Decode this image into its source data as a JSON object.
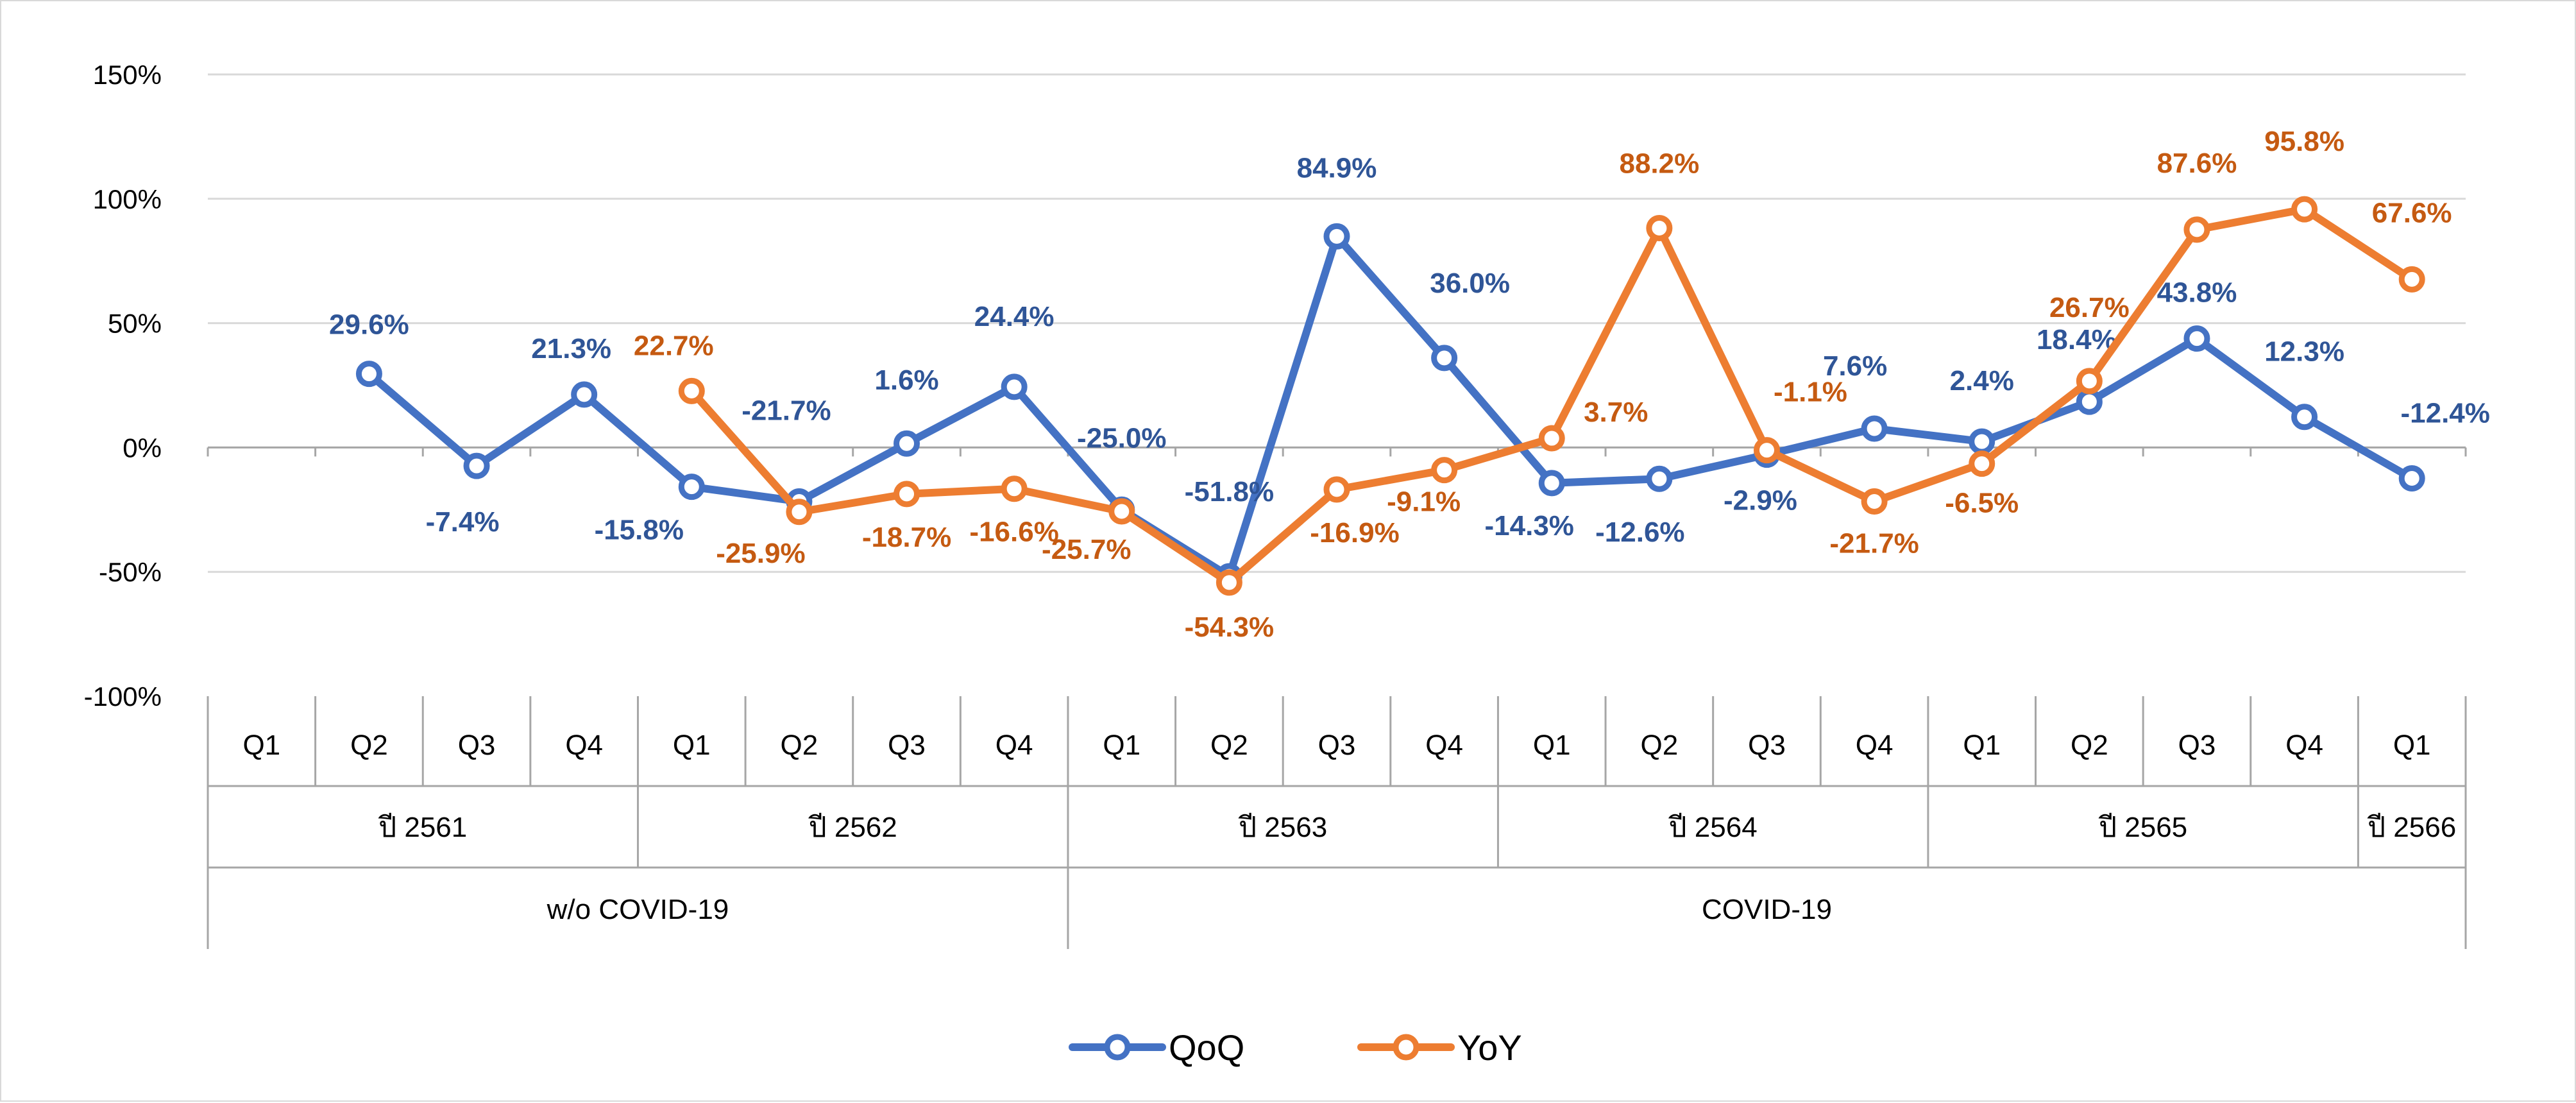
{
  "chart_data": {
    "type": "line",
    "categories": [
      "Q1",
      "Q2",
      "Q3",
      "Q4",
      "Q1",
      "Q2",
      "Q3",
      "Q4",
      "Q1",
      "Q2",
      "Q3",
      "Q4",
      "Q1",
      "Q2",
      "Q3",
      "Q4",
      "Q1",
      "Q2",
      "Q3",
      "Q4",
      "Q1"
    ],
    "years": [
      {
        "label": "ปี 2561",
        "span": 4
      },
      {
        "label": "ปี 2562",
        "span": 4
      },
      {
        "label": "ปี 2563",
        "span": 4
      },
      {
        "label": "ปี 2564",
        "span": 4
      },
      {
        "label": "ปี 2565",
        "span": 4
      },
      {
        "label": "ปี 2566",
        "span": 1
      }
    ],
    "periods": [
      {
        "label": "w/o COVID-19",
        "span": 8
      },
      {
        "label": "COVID-19",
        "span": 13
      }
    ],
    "ylim": [
      -100,
      150
    ],
    "yticks": [
      "150%",
      "100%",
      "50%",
      "0%",
      "-50%",
      "-100%"
    ],
    "grid": true,
    "legend_position": "bottom",
    "series": [
      {
        "name": "QoQ",
        "color": "#4472C4",
        "values": [
          null,
          29.6,
          -7.4,
          21.3,
          -15.8,
          -21.7,
          1.6,
          24.4,
          -25.0,
          -51.8,
          84.9,
          36.0,
          -14.3,
          -12.6,
          -2.9,
          7.6,
          2.4,
          18.4,
          43.8,
          12.3,
          -12.4
        ],
        "labels": [
          "",
          "29.6%",
          "-7.4%",
          "21.3%",
          "-15.8%",
          "-21.7%",
          "1.6%",
          "24.4%",
          "-25.0%",
          "-51.8%",
          "84.9%",
          "36.0%",
          "-14.3%",
          "-12.6%",
          "-2.9%",
          "7.6%",
          "2.4%",
          "18.4%",
          "43.8%",
          "12.3%",
          "-12.4%"
        ]
      },
      {
        "name": "YoY",
        "color": "#ED7D31",
        "values": [
          null,
          null,
          null,
          null,
          22.7,
          -25.9,
          -18.7,
          -16.6,
          -25.7,
          -54.3,
          -16.9,
          -9.1,
          3.7,
          88.2,
          -1.1,
          -21.7,
          -6.5,
          26.7,
          87.6,
          95.8,
          67.6
        ],
        "labels": [
          "",
          "",
          "",
          "",
          "22.7%",
          "-25.9%",
          "-18.7%",
          "-16.6%",
          "-25.7%",
          "-54.3%",
          "-16.9%",
          "-9.1%",
          "3.7%",
          "88.2%",
          "-1.1%",
          "-21.7%",
          "-6.5%",
          "26.7%",
          "87.6%",
          "95.8%",
          "67.6%"
        ]
      }
    ]
  }
}
